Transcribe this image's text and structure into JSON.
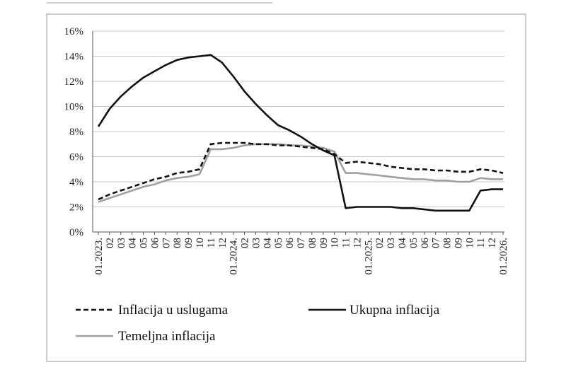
{
  "chart_data": {
    "type": "line",
    "title": "",
    "xlabel": "",
    "ylabel": "",
    "ylim": [
      0,
      16
    ],
    "y_ticks": [
      "0%",
      "2%",
      "4%",
      "6%",
      "8%",
      "10%",
      "12%",
      "14%",
      "16%"
    ],
    "x": [
      "01.2023.",
      "02",
      "03",
      "04",
      "05",
      "06",
      "07",
      "08",
      "09",
      "10",
      "11",
      "12",
      "01.2024.",
      "02",
      "03",
      "04",
      "05",
      "06",
      "07",
      "08",
      "09",
      "10",
      "11",
      "12",
      "01.2025.",
      "02",
      "03",
      "04",
      "05",
      "06",
      "07",
      "08",
      "09",
      "10",
      "11",
      "12",
      "01.2026."
    ],
    "grid": true,
    "legend_position": "bottom",
    "series": [
      {
        "name": "Inflacija u uslugama",
        "style": "dashed",
        "color": "#111111",
        "values": [
          2.6,
          3.0,
          3.3,
          3.6,
          3.9,
          4.2,
          4.4,
          4.7,
          4.8,
          5.0,
          7.0,
          7.1,
          7.1,
          7.1,
          7.0,
          7.0,
          6.9,
          6.9,
          6.8,
          6.7,
          6.6,
          6.2,
          5.5,
          5.6,
          5.5,
          5.4,
          5.2,
          5.1,
          5.0,
          5.0,
          4.9,
          4.9,
          4.8,
          4.8,
          5.0,
          4.9,
          4.7
        ]
      },
      {
        "name": "Ukupna inflacija",
        "style": "solid",
        "color": "#111111",
        "values": [
          8.4,
          9.8,
          10.8,
          11.6,
          12.3,
          12.8,
          13.3,
          13.7,
          13.9,
          14.0,
          14.1,
          13.5,
          12.4,
          11.2,
          10.2,
          9.3,
          8.5,
          8.1,
          7.6,
          7.0,
          6.5,
          6.1,
          1.9,
          2.0,
          2.0,
          2.0,
          2.0,
          1.9,
          1.9,
          1.8,
          1.7,
          1.7,
          1.7,
          1.7,
          3.3,
          3.4,
          3.4
        ]
      },
      {
        "name": "Temeljna inflacija",
        "style": "solid",
        "color": "#a0a0a0",
        "values": [
          2.4,
          2.7,
          3.0,
          3.3,
          3.6,
          3.8,
          4.1,
          4.3,
          4.4,
          4.6,
          6.6,
          6.6,
          6.7,
          6.9,
          7.0,
          7.0,
          7.0,
          6.9,
          6.9,
          6.8,
          6.7,
          6.4,
          4.7,
          4.7,
          4.6,
          4.5,
          4.4,
          4.3,
          4.2,
          4.2,
          4.1,
          4.1,
          4.0,
          4.0,
          4.3,
          4.2,
          4.2
        ]
      }
    ]
  }
}
